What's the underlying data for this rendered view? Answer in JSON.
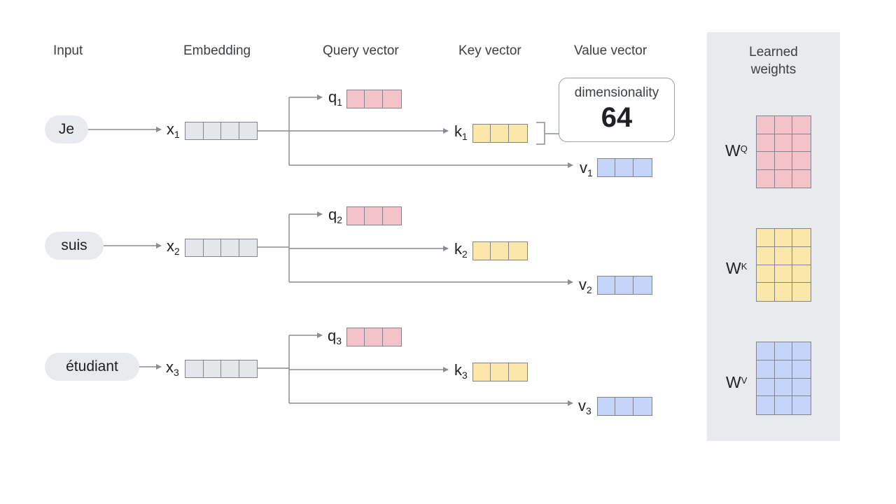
{
  "headers": {
    "input": "Input",
    "embedding": "Embedding",
    "query": "Query vector",
    "key": "Key vector",
    "value": "Value vector"
  },
  "colors": {
    "query": "#f4c2c9",
    "key": "#fbe7a9",
    "value": "#c5d4f8",
    "embedding": "#e5e6ea",
    "line": "#8a8d91",
    "panel": "#e8eaed"
  },
  "rows": [
    {
      "token": "Je",
      "x": "x",
      "q": "q",
      "k": "k",
      "v": "v",
      "index": "1"
    },
    {
      "token": "suis",
      "x": "x",
      "q": "q",
      "k": "k",
      "v": "v",
      "index": "2"
    },
    {
      "token": "étudiant",
      "x": "x",
      "q": "q",
      "k": "k",
      "v": "v",
      "index": "3"
    }
  ],
  "callout": {
    "title": "dimensionality",
    "value": "64"
  },
  "learned_weights": {
    "title_line1": "Learned",
    "title_line2": "weights",
    "matrices": [
      {
        "base": "W",
        "sup": "Q"
      },
      {
        "base": "W",
        "sup": "K"
      },
      {
        "base": "W",
        "sup": "V"
      }
    ]
  }
}
